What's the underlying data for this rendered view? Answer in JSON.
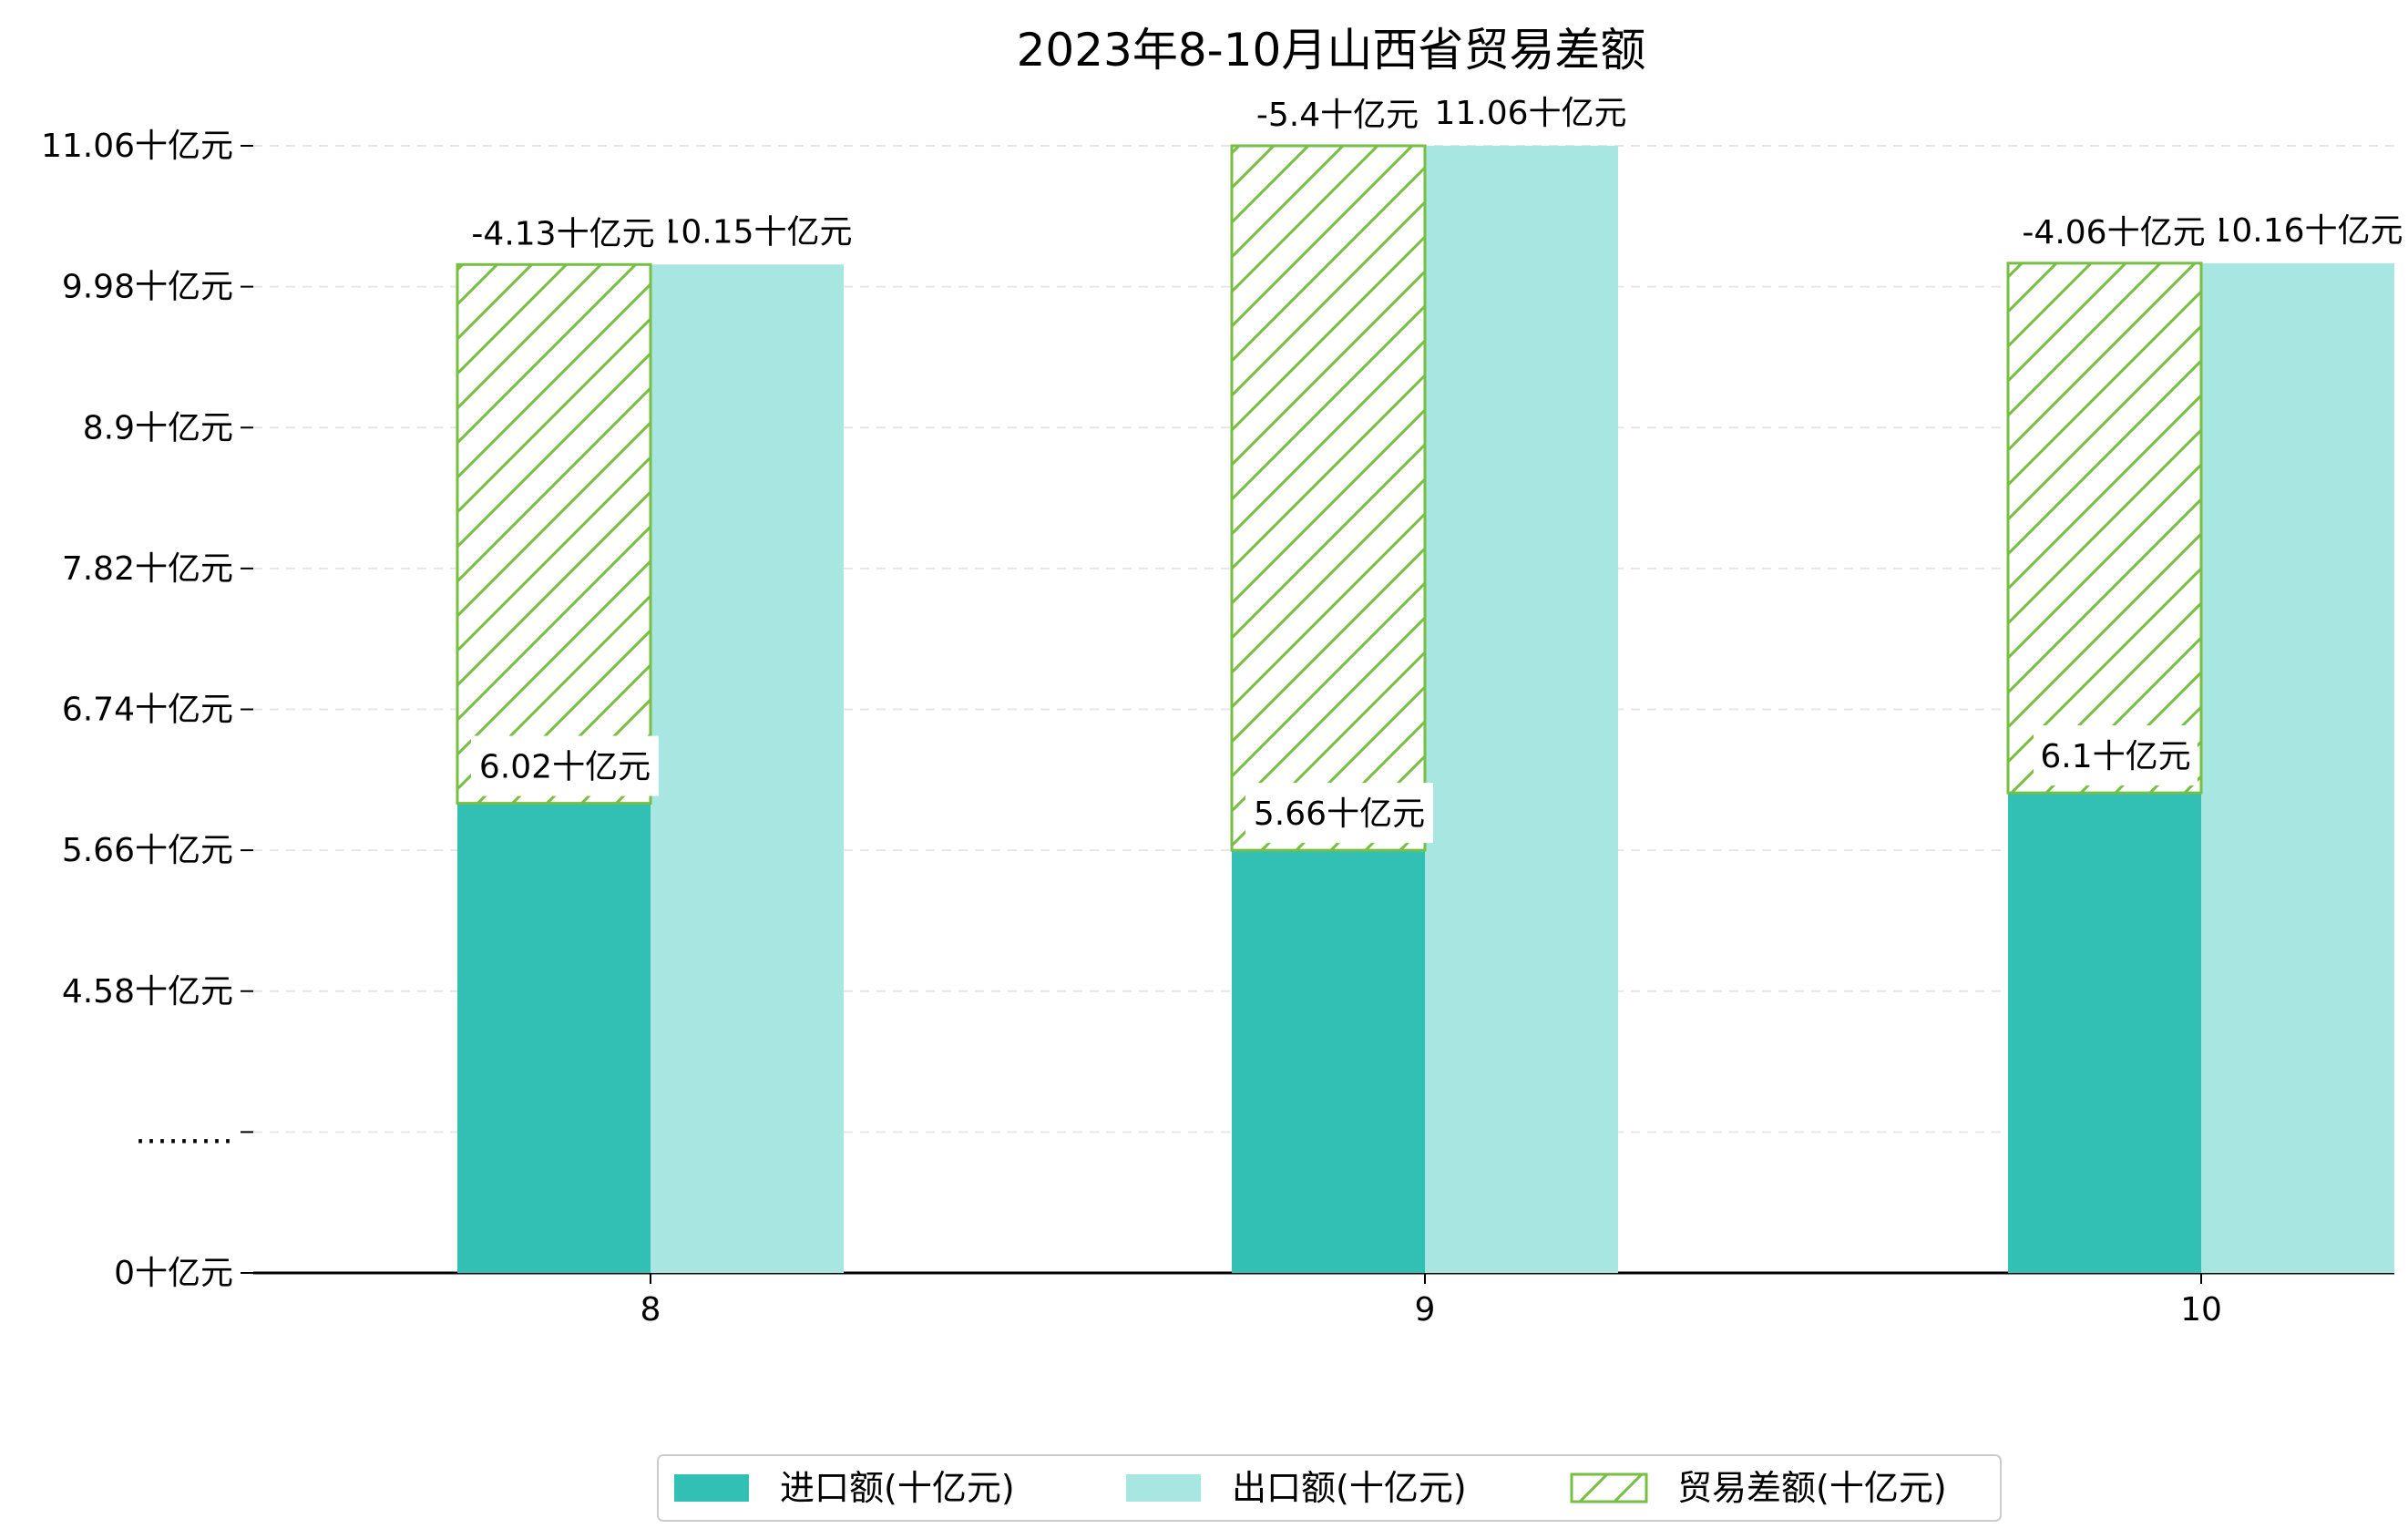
{
  "chart_data": {
    "type": "bar",
    "title": "2023年8-10月山西省贸易差额",
    "categories": [
      "8",
      "9",
      "10"
    ],
    "series": [
      {
        "name": "进口额(十亿元)",
        "values": [
          6.02,
          5.66,
          6.1
        ],
        "labels": [
          "6.02十亿元",
          "5.66十亿元",
          "6.1十亿元"
        ],
        "color": "#31c0b3"
      },
      {
        "name": "出口额(十亿元)",
        "values": [
          10.15,
          11.06,
          10.16
        ],
        "labels": [
          "10.15十亿元",
          "11.06十亿元",
          "10.16十亿元"
        ],
        "color": "#a8e6e1"
      },
      {
        "name": "贸易差额(十亿元)",
        "values": [
          -4.13,
          -5.4,
          -4.06
        ],
        "labels": [
          "-4.13十亿元",
          "-5.4十亿元",
          "-4.06十亿元"
        ],
        "color": "#76bf43",
        "hatch": true
      }
    ],
    "y_ticks": [
      {
        "value": 0,
        "label": "0十亿元"
      },
      {
        "value": 3.5,
        "label": "………"
      },
      {
        "value": 4.58,
        "label": "4.58十亿元"
      },
      {
        "value": 5.66,
        "label": "5.66十亿元"
      },
      {
        "value": 6.74,
        "label": "6.74十亿元"
      },
      {
        "value": 7.82,
        "label": "7.82十亿元"
      },
      {
        "value": 8.9,
        "label": "8.9十亿元"
      },
      {
        "value": 9.98,
        "label": "9.98十亿元"
      },
      {
        "value": 11.06,
        "label": "11.06十亿元"
      }
    ],
    "xlabel": "",
    "ylabel": "",
    "grid": "horizontal dashed",
    "legend_position": "bottom-center"
  }
}
